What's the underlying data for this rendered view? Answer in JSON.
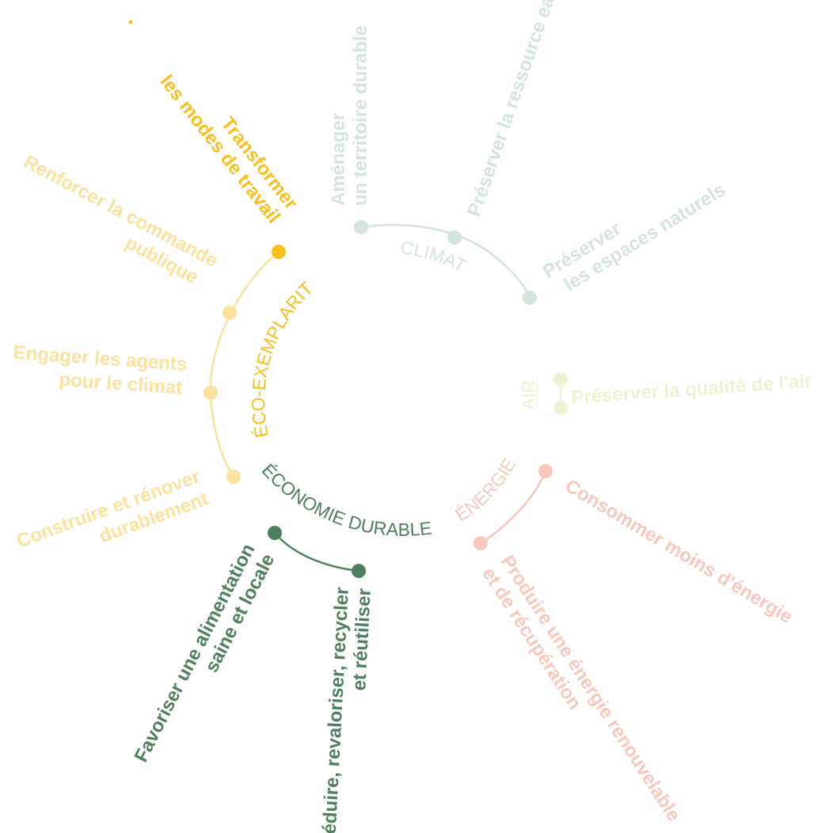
{
  "colors": {
    "eco_exemplarite": "#fce29e",
    "eco_exemplarite_highlight": "#f9bf1e",
    "climat": "#d4e4db",
    "air": "#eef2d1",
    "energie": "#f8c8bc",
    "economie_durable": "#4f7f5f"
  },
  "axes": {
    "eco_exemplarite": {
      "title": "ÉCO-EXEMPLARITÉ",
      "items": {
        "transformer_l1": "Transformer",
        "transformer_l2": "les modes de travail",
        "commande_l1": "Renforcer la commande",
        "commande_l2": "publique",
        "agents_l1": "Engager les agents",
        "agents_l2": "pour le climat",
        "construire_l1": "Construire et rénover",
        "construire_l2": "durablement"
      }
    },
    "climat": {
      "title": "CLIMAT",
      "items": {
        "amenager_l1": "Aménager",
        "amenager_l2": "un territoire durable",
        "eau": "Préserver la ressource eau",
        "espaces_l1": "Préserver",
        "espaces_l2": "les espaces naturels"
      }
    },
    "air": {
      "title": "AIR",
      "items": {
        "qualite": "Préserver la qualité de l'air"
      }
    },
    "energie": {
      "title": "ÉNERGIE",
      "items": {
        "consommer": "Consommer moins d'énergie",
        "produire_l1": "Produire une énergie renouvelable",
        "produire_l2": "et de récupération"
      }
    },
    "economie_durable": {
      "title": "ÉCONOMIE DURABLE",
      "items": {
        "alimentation_l1": "Favoriser une alimentation",
        "alimentation_l2": "saine et locale",
        "reduire_l1": "Réduire, revaloriser, recycler",
        "reduire_l2": "et réutiliser"
      }
    }
  }
}
